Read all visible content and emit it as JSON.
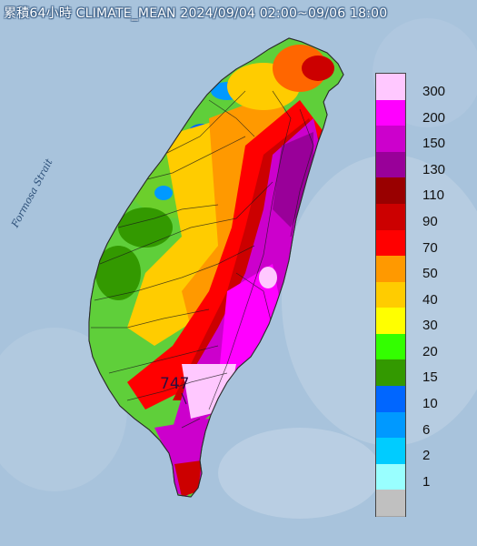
{
  "title": "累積64小時 CLIMATE_MEAN 2024/09/04 02:00~09/06 18:00",
  "strait_label": "Formosa Strait",
  "max_label": "747",
  "legend": {
    "levels": [
      {
        "label": "300",
        "color": "#ffc8ff"
      },
      {
        "label": "200",
        "color": "#ff00ff"
      },
      {
        "label": "150",
        "color": "#cc00cc"
      },
      {
        "label": "130",
        "color": "#990099"
      },
      {
        "label": "110",
        "color": "#990000"
      },
      {
        "label": "90",
        "color": "#cc0000"
      },
      {
        "label": "70",
        "color": "#ff0000"
      },
      {
        "label": "50",
        "color": "#ff9900"
      },
      {
        "label": "40",
        "color": "#ffcc00"
      },
      {
        "label": "30",
        "color": "#ffff00"
      },
      {
        "label": "20",
        "color": "#33ff00"
      },
      {
        "label": "15",
        "color": "#339900"
      },
      {
        "label": "10",
        "color": "#0066ff"
      },
      {
        "label": "6",
        "color": "#0099ff"
      },
      {
        "label": "2",
        "color": "#00ccff"
      },
      {
        "label": "1",
        "color": "#99ffff"
      },
      {
        "label": "",
        "color": "#c0c0c0"
      }
    ]
  }
}
